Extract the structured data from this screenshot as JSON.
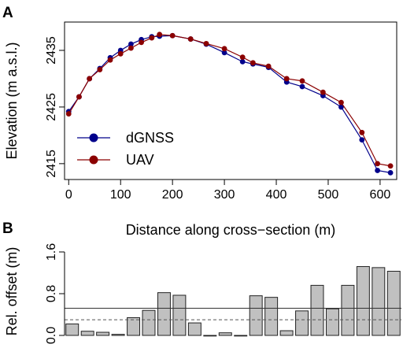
{
  "panels": {
    "a_label": "A",
    "b_label": "B"
  },
  "chart_data": [
    {
      "type": "line",
      "xlabel": "Distance along cross−section (m)",
      "ylabel": "Elevation (m a.s.l.)",
      "xlim": [
        -8,
        632
      ],
      "ylim": [
        2412.2,
        2440
      ],
      "xticks": [
        0,
        100,
        200,
        300,
        400,
        500,
        600
      ],
      "yticks": [
        2415,
        2425,
        2435
      ],
      "grid": false,
      "legend_position": "bottom-left",
      "series": [
        {
          "name": "dGNSS",
          "color": "#00008b",
          "x": [
            0,
            20,
            40,
            60,
            80,
            100,
            120,
            140,
            160,
            175,
            200,
            235,
            265,
            300,
            335,
            355,
            385,
            420,
            450,
            490,
            525,
            565,
            595,
            620
          ],
          "y": [
            2424.2,
            2426.8,
            2430.0,
            2431.8,
            2433.7,
            2435.0,
            2436.1,
            2436.9,
            2437.4,
            2437.5,
            2437.6,
            2437.0,
            2436.1,
            2434.6,
            2433.0,
            2432.6,
            2432.0,
            2429.4,
            2428.6,
            2427.0,
            2425.0,
            2419.2,
            2413.8,
            2413.4
          ]
        },
        {
          "name": "UAV",
          "color": "#8b0000",
          "x": [
            0,
            20,
            40,
            60,
            80,
            100,
            120,
            140,
            160,
            175,
            200,
            235,
            265,
            300,
            335,
            355,
            385,
            420,
            450,
            490,
            525,
            565,
            595,
            620
          ],
          "y": [
            2423.8,
            2426.8,
            2430.0,
            2431.6,
            2433.3,
            2434.4,
            2435.4,
            2436.4,
            2437.2,
            2437.8,
            2437.6,
            2437.0,
            2436.2,
            2435.3,
            2433.8,
            2432.8,
            2432.2,
            2430.0,
            2429.6,
            2427.6,
            2425.8,
            2420.5,
            2415.0,
            2414.6
          ]
        }
      ]
    },
    {
      "type": "bar",
      "ylabel": "Rel. offset (m)",
      "ylim": [
        0,
        1.6
      ],
      "yticks": [
        "0.0",
        "0.8",
        "1.6"
      ],
      "values": [
        0.22,
        0.08,
        0.06,
        0.02,
        0.34,
        0.48,
        0.82,
        0.77,
        0.24,
        0.0,
        0.05,
        0.0,
        0.76,
        0.73,
        0.09,
        0.47,
        0.96,
        0.51,
        0.96,
        1.32,
        1.3,
        1.23
      ],
      "reference_lines": {
        "solid": 0.52,
        "dashed": 0.3
      },
      "bar_color": "#c0c0c0"
    }
  ]
}
